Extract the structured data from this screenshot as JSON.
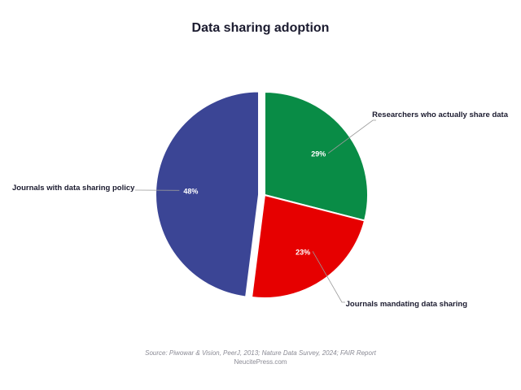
{
  "chart_data": {
    "type": "pie",
    "title": "Data sharing adoption",
    "slices": [
      {
        "label": "Researchers who actually share data",
        "value": 29,
        "display": "29%",
        "color": "#098c46"
      },
      {
        "label": "Journals mandating data sharing",
        "value": 23,
        "display": "23%",
        "color": "#e60000"
      },
      {
        "label": "Journals with data sharing policy",
        "value": 48,
        "display": "48%",
        "color": "#3b4595"
      }
    ],
    "exploded_slice": "Journals with data sharing policy",
    "legend": "none",
    "label_style": "external labels with leader lines"
  },
  "source": {
    "line1": "Source: Piwowar & Vision, PeerJ, 2013; Nature Data Survey, 2024; FAIR Report",
    "line2": "NeucitePress.com"
  }
}
